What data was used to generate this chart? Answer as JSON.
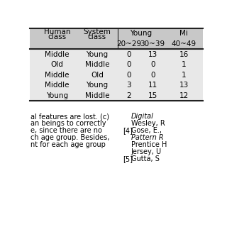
{
  "header_row1_left": [
    "Human\nclass",
    "System\nclass"
  ],
  "header_row1_young": "Young",
  "header_row1_mi": "Mi",
  "header_row2": [
    "20~29",
    "30~39",
    "40~49"
  ],
  "rows": [
    [
      "Middle",
      "Young",
      "0",
      "13",
      "16"
    ],
    [
      "Old",
      "Middle",
      "0",
      "0",
      "1"
    ],
    [
      "Middle",
      "Old",
      "0",
      "0",
      "1"
    ],
    [
      "Middle",
      "Young",
      "3",
      "11",
      "13"
    ],
    [
      "Young",
      "Middle",
      "2",
      "15",
      "12"
    ]
  ],
  "bg_header": "#c8c8c8",
  "bg_data_odd": "#e8e8e8",
  "bg_data_even": "#e8e8e8",
  "line_color": "#222222",
  "font_size": 7.5,
  "bottom_left_lines": [
    "al features are lost. (c)",
    "an beings to correctly",
    "e, since there are no",
    "ch age group. Besides,",
    "nt for each age group"
  ],
  "bottom_right": [
    {
      "label": "",
      "italic": true,
      "text": "Digital"
    },
    {
      "label": "",
      "italic": false,
      "text": "Wesley, R"
    },
    {
      "label": "[4]",
      "italic": false,
      "text": "Gose, E.,"
    },
    {
      "label": "",
      "italic": true,
      "text": "Pattern R"
    },
    {
      "label": "",
      "italic": false,
      "text": "Prentice H"
    },
    {
      "label": "",
      "italic": false,
      "text": "Jersey, U"
    },
    {
      "label": "[5]",
      "italic": false,
      "text": "Gutta, S"
    }
  ]
}
